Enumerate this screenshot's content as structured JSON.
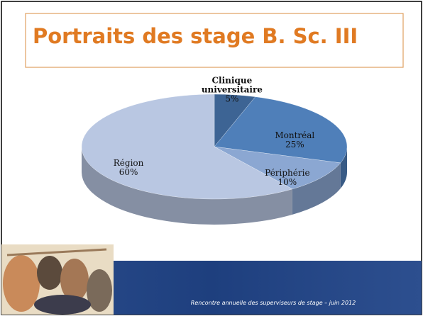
{
  "chart_data": {
    "type": "pie3d",
    "title": "Portraits des stage B. Sc. III",
    "categories": [
      "Clinique universitaire",
      "Montréal",
      "Périphérie",
      "Région"
    ],
    "values": [
      5,
      25,
      10,
      60
    ],
    "value_labels": [
      "5%",
      "25%",
      "10%",
      "60%"
    ],
    "colors": [
      "#3d6494",
      "#4f7fb9",
      "#8ba7d2",
      "#b9c7e2"
    ]
  },
  "footer": "Rencontre annuelle des superviseurs de stage – juin 2012"
}
